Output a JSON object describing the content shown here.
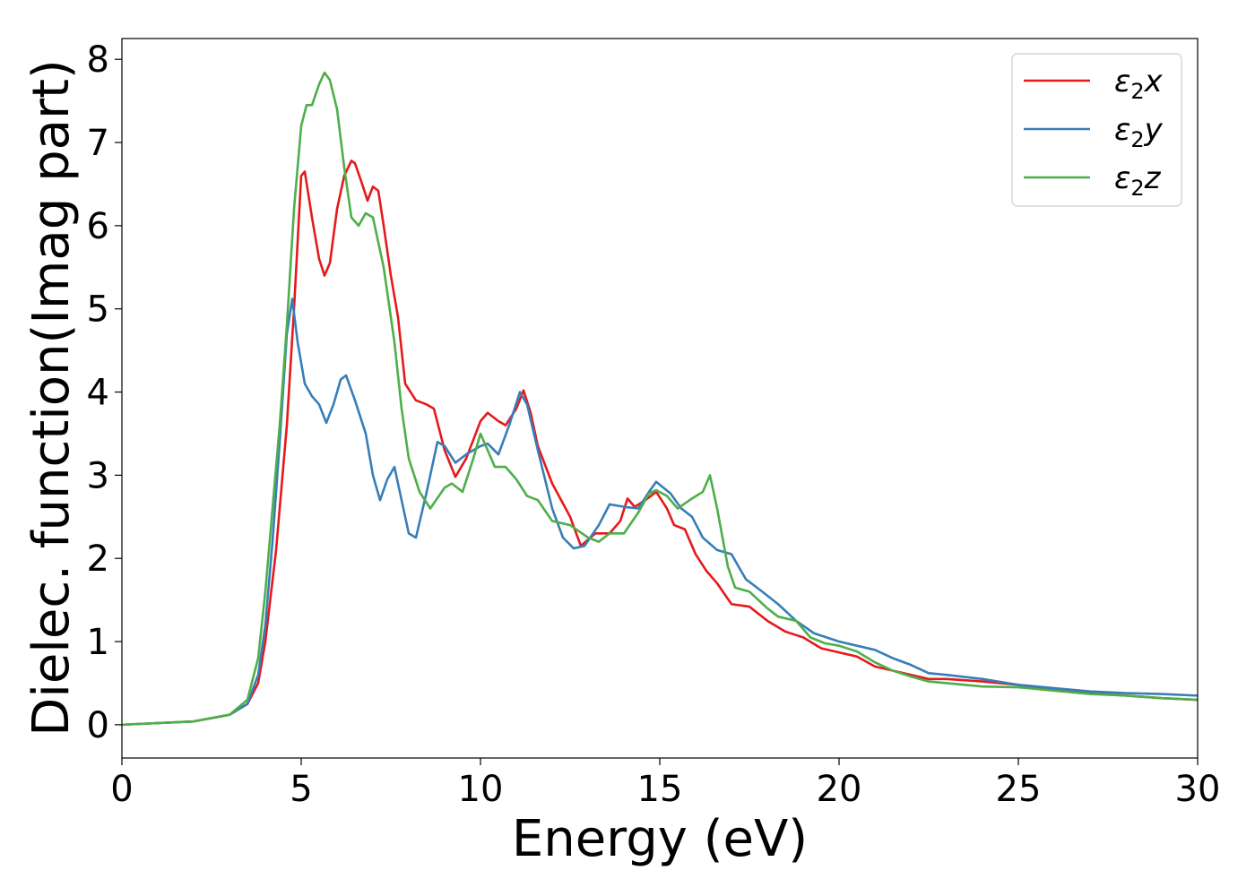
{
  "chart_data": {
    "type": "line",
    "xlabel": "Energy (eV)",
    "ylabel": "Dielec. function(Imag part)",
    "xlim": [
      0,
      30
    ],
    "ylim": [
      -0.4,
      8.25
    ],
    "xticks": [
      0,
      5,
      10,
      15,
      20,
      25,
      30
    ],
    "yticks": [
      0,
      1,
      2,
      3,
      4,
      5,
      6,
      7,
      8
    ],
    "grid": false,
    "legend_position": "top-right",
    "series": [
      {
        "name": "ε₂x",
        "legend_base": "ε",
        "legend_sub": "2",
        "legend_suffix": "x",
        "color": "#e41a1c",
        "points": [
          [
            0,
            0
          ],
          [
            1,
            0.02
          ],
          [
            2,
            0.04
          ],
          [
            3,
            0.12
          ],
          [
            3.5,
            0.25
          ],
          [
            3.8,
            0.5
          ],
          [
            4.0,
            1.0
          ],
          [
            4.3,
            2.1
          ],
          [
            4.6,
            3.6
          ],
          [
            4.8,
            5.0
          ],
          [
            5.0,
            6.6
          ],
          [
            5.1,
            6.65
          ],
          [
            5.3,
            6.1
          ],
          [
            5.5,
            5.6
          ],
          [
            5.65,
            5.4
          ],
          [
            5.8,
            5.55
          ],
          [
            6.0,
            6.2
          ],
          [
            6.2,
            6.6
          ],
          [
            6.4,
            6.78
          ],
          [
            6.5,
            6.75
          ],
          [
            6.7,
            6.5
          ],
          [
            6.85,
            6.3
          ],
          [
            7.0,
            6.47
          ],
          [
            7.15,
            6.42
          ],
          [
            7.3,
            6.0
          ],
          [
            7.5,
            5.4
          ],
          [
            7.7,
            4.9
          ],
          [
            7.9,
            4.1
          ],
          [
            8.2,
            3.9
          ],
          [
            8.5,
            3.85
          ],
          [
            8.7,
            3.8
          ],
          [
            9.0,
            3.3
          ],
          [
            9.3,
            2.98
          ],
          [
            9.6,
            3.2
          ],
          [
            10.0,
            3.65
          ],
          [
            10.2,
            3.75
          ],
          [
            10.5,
            3.65
          ],
          [
            10.7,
            3.6
          ],
          [
            11.0,
            3.8
          ],
          [
            11.2,
            4.02
          ],
          [
            11.4,
            3.75
          ],
          [
            11.6,
            3.35
          ],
          [
            12.0,
            2.9
          ],
          [
            12.5,
            2.5
          ],
          [
            12.8,
            2.15
          ],
          [
            13.2,
            2.3
          ],
          [
            13.6,
            2.3
          ],
          [
            13.9,
            2.45
          ],
          [
            14.1,
            2.72
          ],
          [
            14.3,
            2.62
          ],
          [
            14.6,
            2.7
          ],
          [
            14.9,
            2.8
          ],
          [
            15.2,
            2.6
          ],
          [
            15.4,
            2.4
          ],
          [
            15.7,
            2.35
          ],
          [
            16.0,
            2.05
          ],
          [
            16.3,
            1.85
          ],
          [
            16.6,
            1.7
          ],
          [
            17.0,
            1.45
          ],
          [
            17.5,
            1.42
          ],
          [
            18.0,
            1.25
          ],
          [
            18.5,
            1.12
          ],
          [
            19.0,
            1.05
          ],
          [
            19.5,
            0.92
          ],
          [
            20.0,
            0.87
          ],
          [
            20.5,
            0.82
          ],
          [
            21.0,
            0.7
          ],
          [
            21.5,
            0.65
          ],
          [
            22.0,
            0.6
          ],
          [
            22.5,
            0.55
          ],
          [
            23.0,
            0.55
          ],
          [
            24.0,
            0.52
          ],
          [
            25.0,
            0.48
          ],
          [
            26.0,
            0.42
          ],
          [
            27.0,
            0.38
          ],
          [
            28.0,
            0.35
          ],
          [
            29.0,
            0.32
          ],
          [
            30.0,
            0.3
          ]
        ]
      },
      {
        "name": "ε₂y",
        "legend_base": "ε",
        "legend_sub": "2",
        "legend_suffix": "y",
        "color": "#377eb8",
        "points": [
          [
            0,
            0
          ],
          [
            1,
            0.02
          ],
          [
            2,
            0.04
          ],
          [
            3,
            0.12
          ],
          [
            3.5,
            0.25
          ],
          [
            3.8,
            0.6
          ],
          [
            4.0,
            1.2
          ],
          [
            4.2,
            2.2
          ],
          [
            4.4,
            3.4
          ],
          [
            4.6,
            4.7
          ],
          [
            4.75,
            5.12
          ],
          [
            4.9,
            4.6
          ],
          [
            5.1,
            4.1
          ],
          [
            5.3,
            3.95
          ],
          [
            5.5,
            3.85
          ],
          [
            5.7,
            3.63
          ],
          [
            5.9,
            3.85
          ],
          [
            6.1,
            4.15
          ],
          [
            6.25,
            4.2
          ],
          [
            6.5,
            3.9
          ],
          [
            6.8,
            3.5
          ],
          [
            7.0,
            3.0
          ],
          [
            7.2,
            2.7
          ],
          [
            7.4,
            2.95
          ],
          [
            7.6,
            3.1
          ],
          [
            7.8,
            2.7
          ],
          [
            8.0,
            2.3
          ],
          [
            8.2,
            2.25
          ],
          [
            8.5,
            2.8
          ],
          [
            8.8,
            3.4
          ],
          [
            9.0,
            3.35
          ],
          [
            9.3,
            3.15
          ],
          [
            9.6,
            3.25
          ],
          [
            10.0,
            3.35
          ],
          [
            10.2,
            3.38
          ],
          [
            10.5,
            3.25
          ],
          [
            10.8,
            3.6
          ],
          [
            11.1,
            4.0
          ],
          [
            11.3,
            3.85
          ],
          [
            11.6,
            3.3
          ],
          [
            12.0,
            2.6
          ],
          [
            12.3,
            2.25
          ],
          [
            12.6,
            2.12
          ],
          [
            12.9,
            2.15
          ],
          [
            13.3,
            2.4
          ],
          [
            13.6,
            2.65
          ],
          [
            14.0,
            2.62
          ],
          [
            14.4,
            2.6
          ],
          [
            14.7,
            2.8
          ],
          [
            14.9,
            2.92
          ],
          [
            15.3,
            2.78
          ],
          [
            15.6,
            2.6
          ],
          [
            15.9,
            2.5
          ],
          [
            16.2,
            2.25
          ],
          [
            16.6,
            2.1
          ],
          [
            17.0,
            2.05
          ],
          [
            17.4,
            1.75
          ],
          [
            17.8,
            1.62
          ],
          [
            18.3,
            1.45
          ],
          [
            18.8,
            1.25
          ],
          [
            19.3,
            1.1
          ],
          [
            20.0,
            1.0
          ],
          [
            20.5,
            0.95
          ],
          [
            21.0,
            0.9
          ],
          [
            21.5,
            0.8
          ],
          [
            22.0,
            0.72
          ],
          [
            22.5,
            0.62
          ],
          [
            23.0,
            0.6
          ],
          [
            24.0,
            0.55
          ],
          [
            25.0,
            0.48
          ],
          [
            26.0,
            0.44
          ],
          [
            27.0,
            0.4
          ],
          [
            28.0,
            0.38
          ],
          [
            29.0,
            0.37
          ],
          [
            30.0,
            0.35
          ]
        ]
      },
      {
        "name": "ε₂z",
        "legend_base": "ε",
        "legend_sub": "2",
        "legend_suffix": "z",
        "color": "#4daf4a",
        "points": [
          [
            0,
            0
          ],
          [
            1,
            0.02
          ],
          [
            2,
            0.04
          ],
          [
            3,
            0.12
          ],
          [
            3.5,
            0.3
          ],
          [
            3.8,
            0.8
          ],
          [
            4.0,
            1.6
          ],
          [
            4.2,
            2.6
          ],
          [
            4.4,
            3.6
          ],
          [
            4.6,
            4.8
          ],
          [
            4.8,
            6.2
          ],
          [
            5.0,
            7.2
          ],
          [
            5.15,
            7.45
          ],
          [
            5.3,
            7.45
          ],
          [
            5.5,
            7.7
          ],
          [
            5.65,
            7.84
          ],
          [
            5.8,
            7.75
          ],
          [
            6.0,
            7.4
          ],
          [
            6.2,
            6.7
          ],
          [
            6.4,
            6.1
          ],
          [
            6.6,
            6.0
          ],
          [
            6.8,
            6.15
          ],
          [
            7.0,
            6.1
          ],
          [
            7.3,
            5.5
          ],
          [
            7.6,
            4.6
          ],
          [
            7.8,
            3.8
          ],
          [
            8.0,
            3.2
          ],
          [
            8.3,
            2.8
          ],
          [
            8.6,
            2.6
          ],
          [
            9.0,
            2.85
          ],
          [
            9.2,
            2.9
          ],
          [
            9.5,
            2.8
          ],
          [
            9.8,
            3.2
          ],
          [
            10.0,
            3.5
          ],
          [
            10.2,
            3.3
          ],
          [
            10.4,
            3.1
          ],
          [
            10.7,
            3.1
          ],
          [
            11.0,
            2.95
          ],
          [
            11.3,
            2.75
          ],
          [
            11.6,
            2.7
          ],
          [
            12.0,
            2.45
          ],
          [
            12.5,
            2.4
          ],
          [
            13.0,
            2.25
          ],
          [
            13.3,
            2.2
          ],
          [
            13.6,
            2.3
          ],
          [
            14.0,
            2.3
          ],
          [
            14.4,
            2.55
          ],
          [
            14.7,
            2.78
          ],
          [
            14.9,
            2.82
          ],
          [
            15.2,
            2.75
          ],
          [
            15.5,
            2.6
          ],
          [
            15.9,
            2.72
          ],
          [
            16.2,
            2.8
          ],
          [
            16.4,
            3.0
          ],
          [
            16.6,
            2.6
          ],
          [
            16.9,
            1.9
          ],
          [
            17.1,
            1.65
          ],
          [
            17.5,
            1.6
          ],
          [
            18.0,
            1.4
          ],
          [
            18.3,
            1.3
          ],
          [
            18.8,
            1.25
          ],
          [
            19.2,
            1.05
          ],
          [
            19.6,
            0.98
          ],
          [
            20.0,
            0.95
          ],
          [
            20.5,
            0.88
          ],
          [
            21.0,
            0.75
          ],
          [
            21.5,
            0.65
          ],
          [
            22.0,
            0.58
          ],
          [
            22.5,
            0.52
          ],
          [
            23.0,
            0.5
          ],
          [
            24.0,
            0.46
          ],
          [
            25.0,
            0.45
          ],
          [
            26.0,
            0.41
          ],
          [
            27.0,
            0.37
          ],
          [
            28.0,
            0.35
          ],
          [
            29.0,
            0.32
          ],
          [
            30.0,
            0.3
          ]
        ]
      }
    ]
  }
}
